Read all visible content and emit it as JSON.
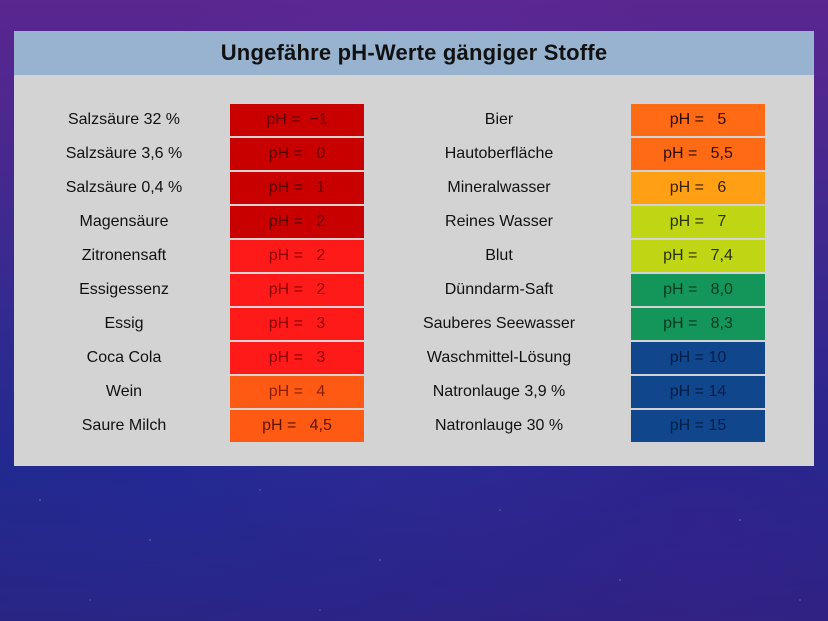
{
  "title": "Ungefähre pH-Werte gängiger Stoffe",
  "left_column": [
    {
      "name": "Salzsäure 32 %",
      "ph": "pH =  −1",
      "color": "#c80000",
      "text_color": "#5a0000"
    },
    {
      "name": "Salzsäure 3,6 %",
      "ph": "pH =   0",
      "color": "#c80000",
      "text_color": "#5a0000"
    },
    {
      "name": "Salzsäure 0,4 %",
      "ph": "pH =   1",
      "color": "#c80000",
      "text_color": "#5a0000"
    },
    {
      "name": "Magensäure",
      "ph": "pH =   2",
      "color": "#c80000",
      "text_color": "#5a0000"
    },
    {
      "name": "Zitronensaft",
      "ph": "pH =   2",
      "color": "#ff1a1a",
      "text_color": "#8a0000"
    },
    {
      "name": "Essigessenz",
      "ph": "pH =   2",
      "color": "#ff1a1a",
      "text_color": "#8a0000"
    },
    {
      "name": "Essig",
      "ph": "pH =   3",
      "color": "#ff1a1a",
      "text_color": "#8a0000"
    },
    {
      "name": "Coca Cola",
      "ph": "pH =   3",
      "color": "#ff1a1a",
      "text_color": "#8a0000"
    },
    {
      "name": "Wein",
      "ph": "pH =   4",
      "color": "#ff5a14",
      "text_color": "#8a1e00"
    },
    {
      "name": "Saure Milch",
      "ph": "pH =   4,5",
      "color": "#ff5a14",
      "text_color": "#5a1400"
    }
  ],
  "right_column": [
    {
      "name": "Bier",
      "ph": "pH =   5",
      "color": "#ff6a14",
      "text_color": "#2a0a00"
    },
    {
      "name": "Hautoberfläche",
      "ph": "pH =   5,5",
      "color": "#ff6a14",
      "text_color": "#2a0a00"
    },
    {
      "name": "Mineralwasser",
      "ph": "pH =   6",
      "color": "#ffa014",
      "text_color": "#3a2000"
    },
    {
      "name": "Reines Wasser",
      "ph": "pH =   7",
      "color": "#bed614",
      "text_color": "#2a3000"
    },
    {
      "name": "Blut",
      "ph": "pH =   7,4",
      "color": "#bed614",
      "text_color": "#2a3000"
    },
    {
      "name": "Dünndarm-Saft",
      "ph": "pH =   8,0",
      "color": "#14965a",
      "text_color": "#003a1e"
    },
    {
      "name": "Sauberes Seewasser",
      "ph": "pH =   8,3",
      "color": "#14965a",
      "text_color": "#003a1e"
    },
    {
      "name": "Waschmittel-Lösung",
      "ph": "pH = 10",
      "color": "#0f468c",
      "text_color": "#001e46"
    },
    {
      "name": "Natronlauge 3,9 %",
      "ph": "pH = 14",
      "color": "#0f468c",
      "text_color": "#001e46"
    },
    {
      "name": "Natronlauge 30 %",
      "ph": "pH = 15",
      "color": "#0f468c",
      "text_color": "#001e46"
    }
  ]
}
